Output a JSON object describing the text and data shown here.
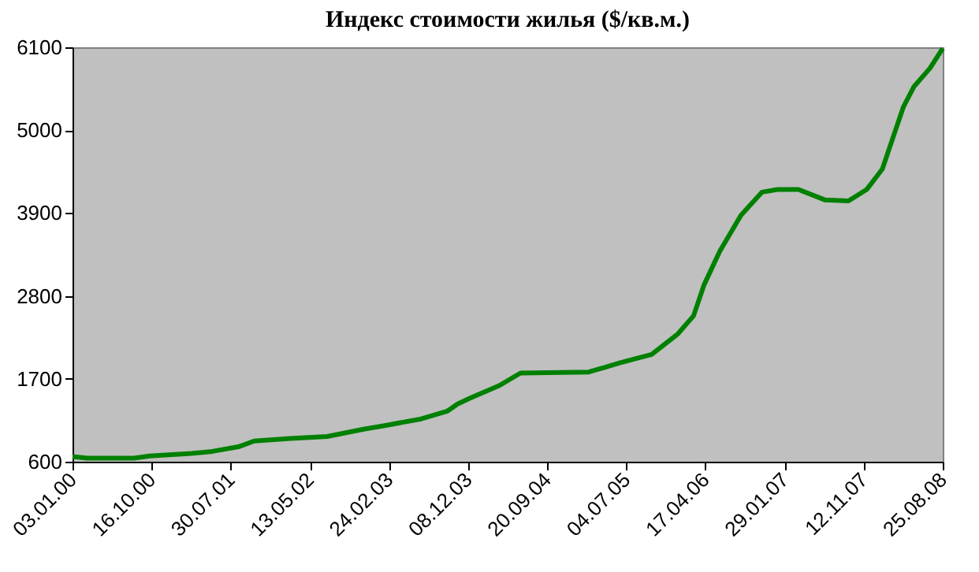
{
  "chart_data": {
    "type": "line",
    "title": "Индекс стоимости жилья ($/кв.м.)",
    "x": [
      "2000-01-03",
      "2000-02-25",
      "2000-08-13",
      "2000-10-09",
      "2001-03-10",
      "2001-05-24",
      "2001-08-27",
      "2001-10-23",
      "2002-03-04",
      "2002-07-15",
      "2002-11-24",
      "2003-02-08",
      "2003-06-21",
      "2003-09-23",
      "2003-10-31",
      "2003-12-14",
      "2004-03-31",
      "2004-06-15",
      "2005-02-18",
      "2005-06-12",
      "2005-10-04",
      "2006-01-07",
      "2006-03-05",
      "2006-04-12",
      "2006-06-08",
      "2006-08-24",
      "2006-11-08",
      "2007-01-04",
      "2007-03-21",
      "2007-06-24",
      "2007-09-18",
      "2007-11-23",
      "2008-01-19",
      "2008-02-26",
      "2008-04-04",
      "2008-05-13",
      "2008-07-09",
      "2008-08-25"
    ],
    "series": [
      {
        "color": "#008000",
        "values": [
          668,
          648,
          648,
          675,
          710,
          737,
          798,
          874,
          908,
          935,
          1031,
          1079,
          1168,
          1270,
          1366,
          1441,
          1612,
          1776,
          1790,
          1913,
          2023,
          2296,
          2536,
          2946,
          3391,
          3870,
          4177,
          4212,
          4212,
          4075,
          4061,
          4212,
          4485,
          4896,
          5306,
          5580,
          5819,
          6086
        ]
      }
    ],
    "xlim": [
      "2000-01-03",
      "2008-08-25"
    ],
    "xticks": [
      {
        "value": "2000-01-03",
        "label": "03.01.00"
      },
      {
        "value": "2000-10-16",
        "label": "16.10.00"
      },
      {
        "value": "2001-07-30",
        "label": "30.07.01"
      },
      {
        "value": "2002-05-13",
        "label": "13.05.02"
      },
      {
        "value": "2003-02-24",
        "label": "24.02.03"
      },
      {
        "value": "2003-12-08",
        "label": "08.12.03"
      },
      {
        "value": "2004-09-20",
        "label": "20.09.04"
      },
      {
        "value": "2005-07-04",
        "label": "04.07.05"
      },
      {
        "value": "2006-04-17",
        "label": "17.04.06"
      },
      {
        "value": "2007-01-29",
        "label": "29.01.07"
      },
      {
        "value": "2007-11-12",
        "label": "12.11.07"
      },
      {
        "value": "2008-08-25",
        "label": "25.08.08"
      }
    ],
    "ylim": [
      600,
      6100
    ],
    "yticks": [
      600,
      1700,
      2800,
      3900,
      5000,
      6100
    ],
    "grid": false,
    "marker": "none",
    "line_style": "solid"
  }
}
